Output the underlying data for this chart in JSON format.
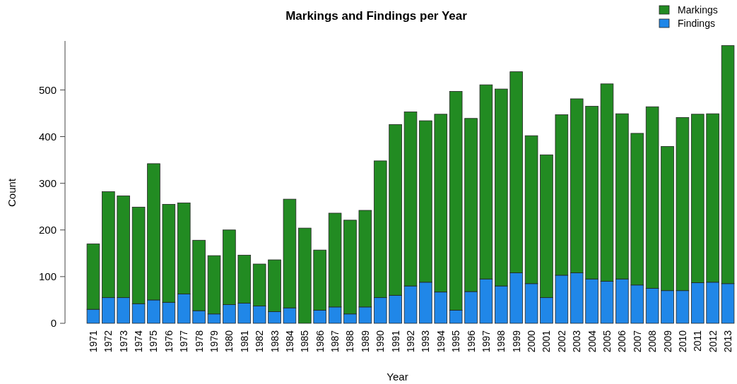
{
  "chart_data": {
    "type": "bar",
    "title": "Markings and Findings per Year",
    "xlabel": "Year",
    "ylabel": "Count",
    "categories": [
      "1971",
      "1972",
      "1973",
      "1974",
      "1975",
      "1976",
      "1977",
      "1978",
      "1979",
      "1980",
      "1981",
      "1982",
      "1983",
      "1984",
      "1985",
      "1986",
      "1987",
      "1988",
      "1989",
      "1990",
      "1991",
      "1992",
      "1993",
      "1994",
      "1995",
      "1996",
      "1997",
      "1998",
      "1999",
      "2000",
      "2001",
      "2002",
      "2003",
      "2004",
      "2005",
      "2006",
      "2007",
      "2008",
      "2009",
      "2010",
      "2011",
      "2012",
      "2013"
    ],
    "series": [
      {
        "name": "Findings",
        "color": "#2087e8",
        "values": [
          30,
          55,
          55,
          42,
          50,
          45,
          63,
          27,
          20,
          40,
          43,
          37,
          25,
          33,
          0,
          28,
          35,
          20,
          35,
          55,
          60,
          80,
          88,
          67,
          28,
          68,
          95,
          80,
          108,
          85,
          55,
          103,
          108,
          95,
          90,
          95,
          82,
          75,
          70,
          70,
          87,
          88,
          85
        ]
      },
      {
        "name": "Markings",
        "color": "#228b22",
        "values": [
          140,
          227,
          218,
          207,
          292,
          210,
          195,
          151,
          125,
          160,
          103,
          90,
          111,
          233,
          204,
          129,
          201,
          201,
          207,
          293,
          366,
          373,
          346,
          381,
          469,
          371,
          416,
          422,
          431,
          317,
          306,
          344,
          373,
          370,
          423,
          354,
          325,
          389,
          309,
          371,
          361,
          361,
          510
        ]
      }
    ],
    "stacked": true,
    "ylim": [
      0,
      605
    ],
    "yticks": [
      0,
      100,
      200,
      300,
      400,
      500
    ],
    "legend": "top right",
    "grid": false
  }
}
